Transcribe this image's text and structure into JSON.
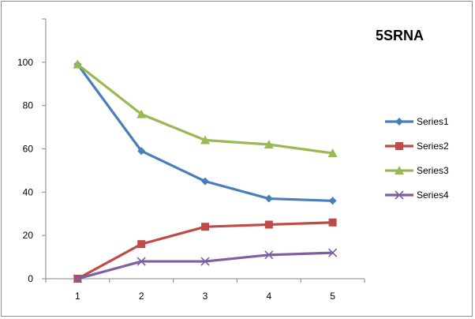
{
  "chart_data": {
    "type": "line",
    "title": "5SRNA",
    "xlabel": "",
    "ylabel": "",
    "categories": [
      "1",
      "2",
      "3",
      "4",
      "5"
    ],
    "ylim": [
      0,
      120
    ],
    "yticks": [
      0,
      20,
      40,
      60,
      80,
      100
    ],
    "grid": false,
    "legend_position": "right",
    "series": [
      {
        "name": "Series1",
        "values": [
          99,
          59,
          45,
          37,
          36
        ],
        "color": "#4a7ebb",
        "marker": "diamond"
      },
      {
        "name": "Series2",
        "values": [
          0,
          16,
          24,
          25,
          26
        ],
        "color": "#be4b48",
        "marker": "square"
      },
      {
        "name": "Series3",
        "values": [
          99,
          76,
          64,
          62,
          58
        ],
        "color": "#98b954",
        "marker": "triangle"
      },
      {
        "name": "Series4",
        "values": [
          0,
          8,
          8,
          11,
          12
        ],
        "color": "#7d60a0",
        "marker": "x"
      }
    ]
  }
}
